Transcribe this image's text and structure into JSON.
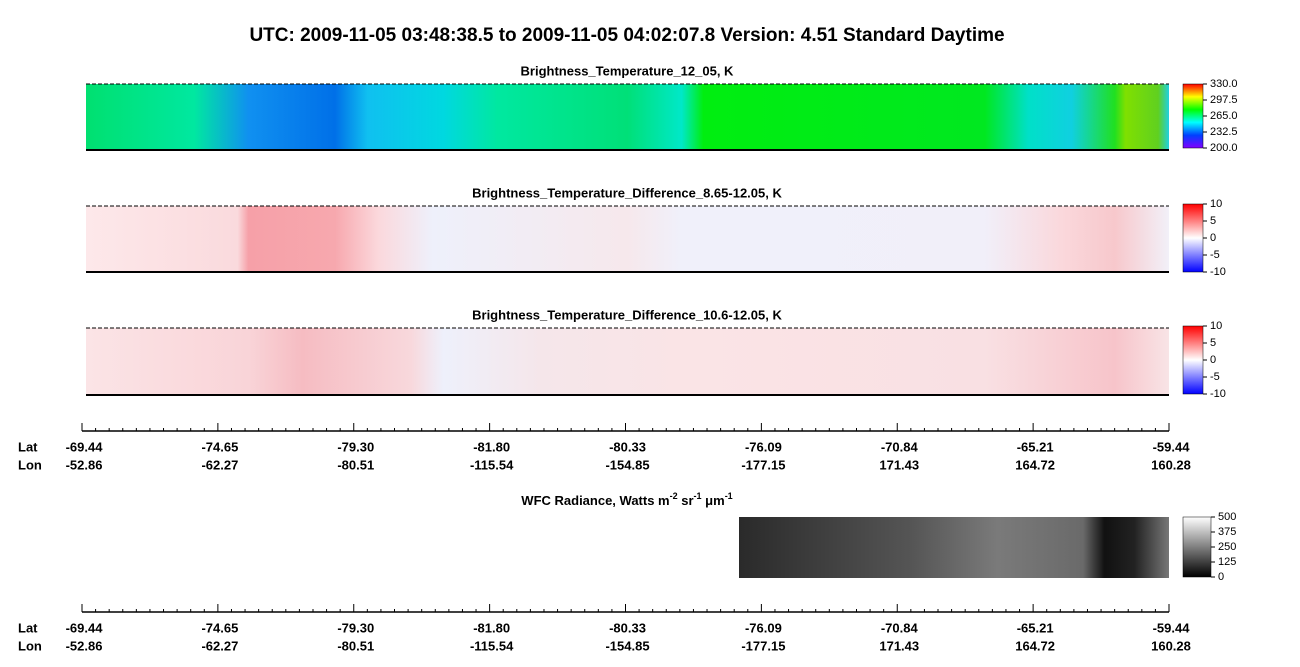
{
  "title": "UTC:  2009-11-05   03:48:38.5  to  2009-11-05   04:02:07.8    Version: 4.51  Standard Daytime",
  "chart_data": [
    {
      "type": "heatmap",
      "title": "Brightness_Temperature_12_05, K",
      "zlim": [
        200,
        330
      ],
      "zticks": [
        {
          "value": 330,
          "label": "330.0"
        },
        {
          "value": 297.5,
          "label": "297.5"
        },
        {
          "value": 265,
          "label": "265.0"
        },
        {
          "value": 232.5,
          "label": "232.5"
        },
        {
          "value": 200,
          "label": "200.0"
        }
      ]
    },
    {
      "type": "heatmap",
      "title": "Brightness_Temperature_Difference_8.65-12.05, K",
      "zlim": [
        -10,
        10
      ],
      "zticks": [
        10,
        5,
        0,
        -5,
        -10
      ]
    },
    {
      "type": "heatmap",
      "title": "Brightness_Temperature_Difference_10.6-12.05, K",
      "zlim": [
        -10,
        10
      ],
      "zticks": [
        10,
        5,
        0,
        -5,
        -10
      ]
    },
    {
      "type": "heatmap",
      "title": [
        "WFC Radiance, Watts m",
        "-2",
        " sr",
        "-1",
        " μm",
        "-1"
      ],
      "zlim": [
        0,
        500
      ],
      "zticks": [
        500,
        375,
        250,
        125,
        0
      ]
    }
  ],
  "track_axis": {
    "labels": [
      "Lat",
      "Lon"
    ],
    "lat": [
      -69.44,
      -74.65,
      -79.3,
      -81.8,
      -80.33,
      -76.09,
      -70.84,
      -65.21,
      -59.44
    ],
    "lon": [
      -52.86,
      -62.27,
      -80.51,
      -115.54,
      -154.85,
      -177.15,
      171.43,
      164.72,
      160.28
    ]
  }
}
